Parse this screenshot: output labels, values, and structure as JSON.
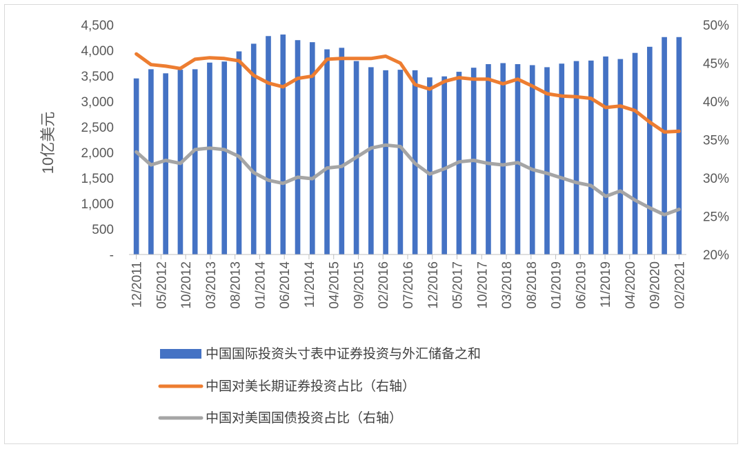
{
  "chart_data": {
    "type": "bar+line",
    "ylabel": "10亿美元",
    "y_left": {
      "min": 0,
      "max": 4500,
      "step": 500,
      "tick_labels": [
        "-",
        "500",
        "1,000",
        "1,500",
        "2,000",
        "2,500",
        "3,000",
        "3,500",
        "4,000",
        "4,500"
      ]
    },
    "y_right": {
      "min": 20,
      "max": 50,
      "step": 5,
      "tick_labels": [
        "20%",
        "25%",
        "30%",
        "35%",
        "40%",
        "45%",
        "50%"
      ]
    },
    "x_tick_labels": [
      "12/2011",
      "05/2012",
      "10/2012",
      "03/2013",
      "08/2013",
      "01/2014",
      "06/2014",
      "11/2014",
      "04/2015",
      "09/2015",
      "02/2016",
      "07/2016",
      "12/2016",
      "05/2017",
      "10/2017",
      "03/2018",
      "08/2018",
      "01/2019",
      "06/2019",
      "11/2019",
      "04/2020",
      "09/2020",
      "02/2021"
    ],
    "series": [
      {
        "name": "中国国际投资头寸表中证券投资与外汇储备之和",
        "kind": "bar",
        "axis": "left",
        "color": "#4472C4",
        "values": [
          3450,
          3630,
          3550,
          3620,
          3630,
          3760,
          3780,
          3980,
          4130,
          4280,
          4310,
          4200,
          4160,
          4020,
          4050,
          3790,
          3670,
          3610,
          3620,
          3610,
          3470,
          3490,
          3580,
          3660,
          3730,
          3750,
          3730,
          3710,
          3670,
          3740,
          3790,
          3800,
          3880,
          3830,
          3950,
          4070,
          4260,
          4260
        ]
      },
      {
        "name": "中国对美长期证券投资占比（右轴）",
        "kind": "line",
        "axis": "right",
        "color": "#ED7D31",
        "values": [
          46.2,
          44.8,
          44.6,
          44.3,
          45.5,
          45.7,
          45.6,
          45.3,
          43.4,
          42.4,
          41.9,
          43.0,
          43.3,
          45.5,
          45.6,
          45.6,
          45.6,
          45.9,
          45.0,
          42.2,
          41.6,
          42.6,
          43.1,
          42.9,
          42.9,
          42.3,
          42.9,
          42.0,
          41.0,
          40.7,
          40.6,
          40.4,
          39.2,
          39.4,
          38.8,
          37.3,
          36.0,
          36.1
        ]
      },
      {
        "name": "中国对美国国债投资占比（右轴）",
        "kind": "line",
        "axis": "right",
        "color": "#A5A5A5",
        "values": [
          33.4,
          31.7,
          32.3,
          31.9,
          33.7,
          33.9,
          33.7,
          32.8,
          30.7,
          29.7,
          29.3,
          30.1,
          29.9,
          31.3,
          31.5,
          32.7,
          33.9,
          34.3,
          34.1,
          31.9,
          30.5,
          31.2,
          32.1,
          32.3,
          31.9,
          31.7,
          32.0,
          31.1,
          30.6,
          30.0,
          29.4,
          29.0,
          27.6,
          28.3,
          27.1,
          26.1,
          25.2,
          25.9
        ]
      }
    ]
  }
}
